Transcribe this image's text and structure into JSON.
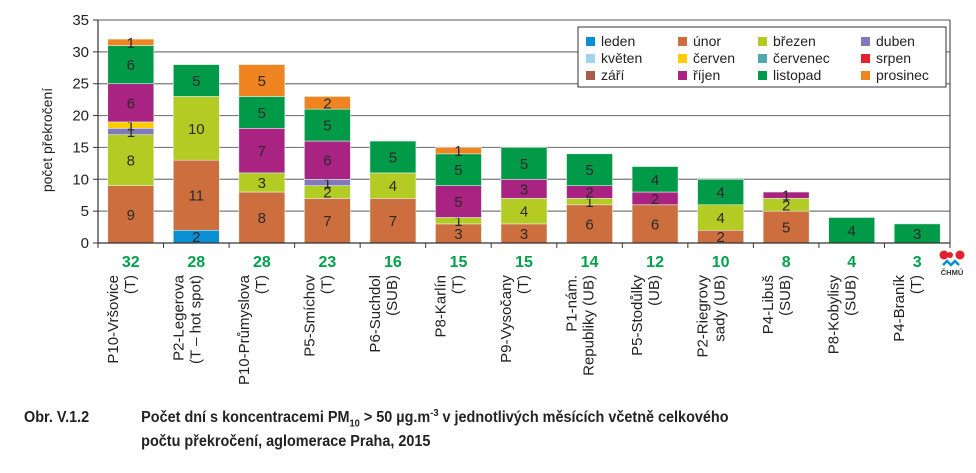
{
  "chart_data": {
    "type": "bar",
    "stacked": true,
    "title": "",
    "xlabel": "",
    "ylabel": "počet překročení",
    "ylim": [
      0,
      35
    ],
    "yticks": [
      0,
      5,
      10,
      15,
      20,
      25,
      30,
      35
    ],
    "grid": true,
    "legend_position": "top-right",
    "categories": [
      [
        "P10-Vršovice",
        "(T)"
      ],
      [
        "P2-Legerova",
        "(T – hot spot)"
      ],
      [
        "P10-Průmyslova",
        "(T)"
      ],
      [
        "P5-Smíchov",
        "(T)"
      ],
      [
        "P6-Suchdol",
        "(SUB)"
      ],
      [
        "P8-Karlín",
        "(T)"
      ],
      [
        "P9-Vysočany",
        "(T)"
      ],
      [
        "P1-nám.",
        "Republiky (UB)"
      ],
      [
        "P5-Stodůlky",
        "(UB)"
      ],
      [
        "P2-Riegrovy",
        "sady (UB)"
      ],
      [
        "P4-Libuš",
        "(SUB)"
      ],
      [
        "P8-Kobylisy",
        "(SUB)"
      ],
      [
        "P4-Braník",
        "(T)"
      ]
    ],
    "totals": [
      32,
      28,
      28,
      23,
      16,
      15,
      15,
      14,
      12,
      10,
      8,
      4,
      3
    ],
    "series": [
      {
        "name": "leden",
        "color": "#0a8fd3",
        "values": [
          0,
          2,
          0,
          0,
          0,
          0,
          0,
          0,
          0,
          0,
          0,
          0,
          0
        ]
      },
      {
        "name": "únor",
        "color": "#cd6e3e",
        "values": [
          9,
          11,
          8,
          7,
          7,
          3,
          3,
          6,
          6,
          2,
          5,
          0,
          0
        ]
      },
      {
        "name": "březen",
        "color": "#b3cb22",
        "values": [
          8,
          10,
          3,
          2,
          4,
          1,
          4,
          1,
          0,
          4,
          2,
          0,
          0
        ]
      },
      {
        "name": "duben",
        "color": "#8379b8",
        "values": [
          1,
          0,
          0,
          1,
          0,
          0,
          0,
          0,
          0,
          0,
          0,
          0,
          0
        ]
      },
      {
        "name": "květen",
        "color": "#9fd4ee",
        "values": [
          0,
          0,
          0,
          0,
          0,
          0,
          0,
          0,
          0,
          0,
          0,
          0,
          0
        ]
      },
      {
        "name": "červen",
        "color": "#ffcc00",
        "values": [
          1,
          0,
          0,
          0,
          0,
          0,
          0,
          0,
          0,
          0,
          0,
          0,
          0
        ]
      },
      {
        "name": "červenec",
        "color": "#4fa9ae",
        "values": [
          0,
          0,
          0,
          0,
          0,
          0,
          0,
          0,
          0,
          0,
          0,
          0,
          0
        ]
      },
      {
        "name": "srpen",
        "color": "#e3232b",
        "values": [
          0,
          0,
          0,
          0,
          0,
          0,
          0,
          0,
          0,
          0,
          0,
          0,
          0
        ]
      },
      {
        "name": "září",
        "color": "#a85c4c",
        "values": [
          0,
          0,
          0,
          0,
          0,
          0,
          0,
          0,
          0,
          0,
          0,
          0,
          0
        ]
      },
      {
        "name": "říjen",
        "color": "#a82382",
        "values": [
          6,
          0,
          7,
          6,
          0,
          5,
          3,
          2,
          2,
          0,
          1,
          0,
          0
        ]
      },
      {
        "name": "listopad",
        "color": "#009a48",
        "values": [
          6,
          5,
          5,
          5,
          5,
          5,
          5,
          5,
          4,
          4,
          0,
          4,
          3
        ]
      },
      {
        "name": "prosinec",
        "color": "#f08420",
        "values": [
          1,
          0,
          5,
          2,
          0,
          1,
          0,
          0,
          0,
          0,
          0,
          0,
          0
        ]
      }
    ],
    "legend_order": [
      "leden",
      "únor",
      "březen",
      "duben",
      "květen",
      "červen",
      "červenec",
      "srpen",
      "září",
      "říjen",
      "listopad",
      "prosinec"
    ],
    "total_label_color": "#00a14b"
  },
  "logo": {
    "text": "ČHMÚ"
  },
  "caption": {
    "number": "Obr. V.1.2",
    "line1_a": "Počet dní s koncentracemi PM",
    "line1_sub": "10",
    "line1_b": " > 50 µg.m",
    "line1_sup": "-3",
    "line1_c": " v jednotlivých měsících včetně celkového",
    "line2": "počtu překročení, aglomerace Praha, 2015"
  }
}
